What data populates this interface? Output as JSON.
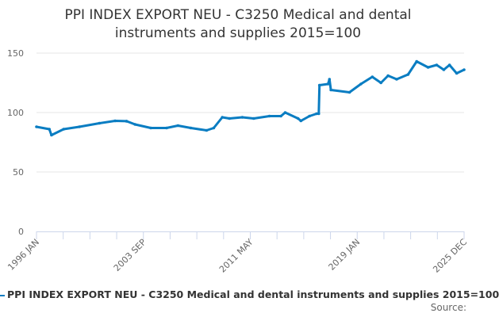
{
  "chart_data": {
    "type": "line",
    "title": "PPI INDEX EXPORT NEU - C3250 Medical and dental instruments and supplies 2015=100",
    "title_lines": [
      "PPI INDEX EXPORT NEU - C3250 Medical and dental",
      "instruments and supplies 2015=100"
    ],
    "xlabel": "",
    "ylabel": "",
    "ylim": [
      0,
      150
    ],
    "xlim": [
      1996.0,
      2025.92
    ],
    "y_ticks": [
      0,
      50,
      100,
      150
    ],
    "x_tick_labels": [
      "1996 JAN",
      "2003 SEP",
      "2011 MAY",
      "2019 JAN",
      "2025 DEC"
    ],
    "grid": true,
    "legend_position": "bottom",
    "series": [
      {
        "name": "PPI INDEX EXPORT NEU - C3250 Medical and dental instruments and supplies 2015=100",
        "color": "#0a7dc2",
        "x": [
          1996.0,
          1996.9,
          1997.05,
          1997.9,
          1999.0,
          2000.4,
          2001.5,
          2002.3,
          2002.9,
          2004.0,
          2005.1,
          2005.9,
          2006.8,
          2007.9,
          2008.4,
          2009.0,
          2009.5,
          2010.4,
          2011.2,
          2012.3,
          2013.1,
          2013.4,
          2014.3,
          2014.5,
          2015.1,
          2015.6,
          2015.75,
          2015.8,
          2016.4,
          2016.5,
          2016.6,
          2017.9,
          2018.7,
          2019.5,
          2020.1,
          2020.6,
          2021.2,
          2022.0,
          2022.6,
          2023.4,
          2024.0,
          2024.5,
          2024.9,
          2025.4,
          2025.92
        ],
        "values": [
          88,
          86,
          81,
          86,
          88,
          91,
          93,
          92.7,
          90,
          87,
          87,
          89,
          87,
          85,
          87,
          96,
          95,
          96,
          95,
          97,
          97,
          100,
          95,
          93,
          97,
          99,
          99,
          123,
          124,
          128,
          119,
          117,
          124,
          130,
          125,
          131,
          128,
          132,
          143,
          138,
          140,
          136,
          140,
          133,
          136
        ]
      }
    ],
    "source_label": "Source:"
  }
}
